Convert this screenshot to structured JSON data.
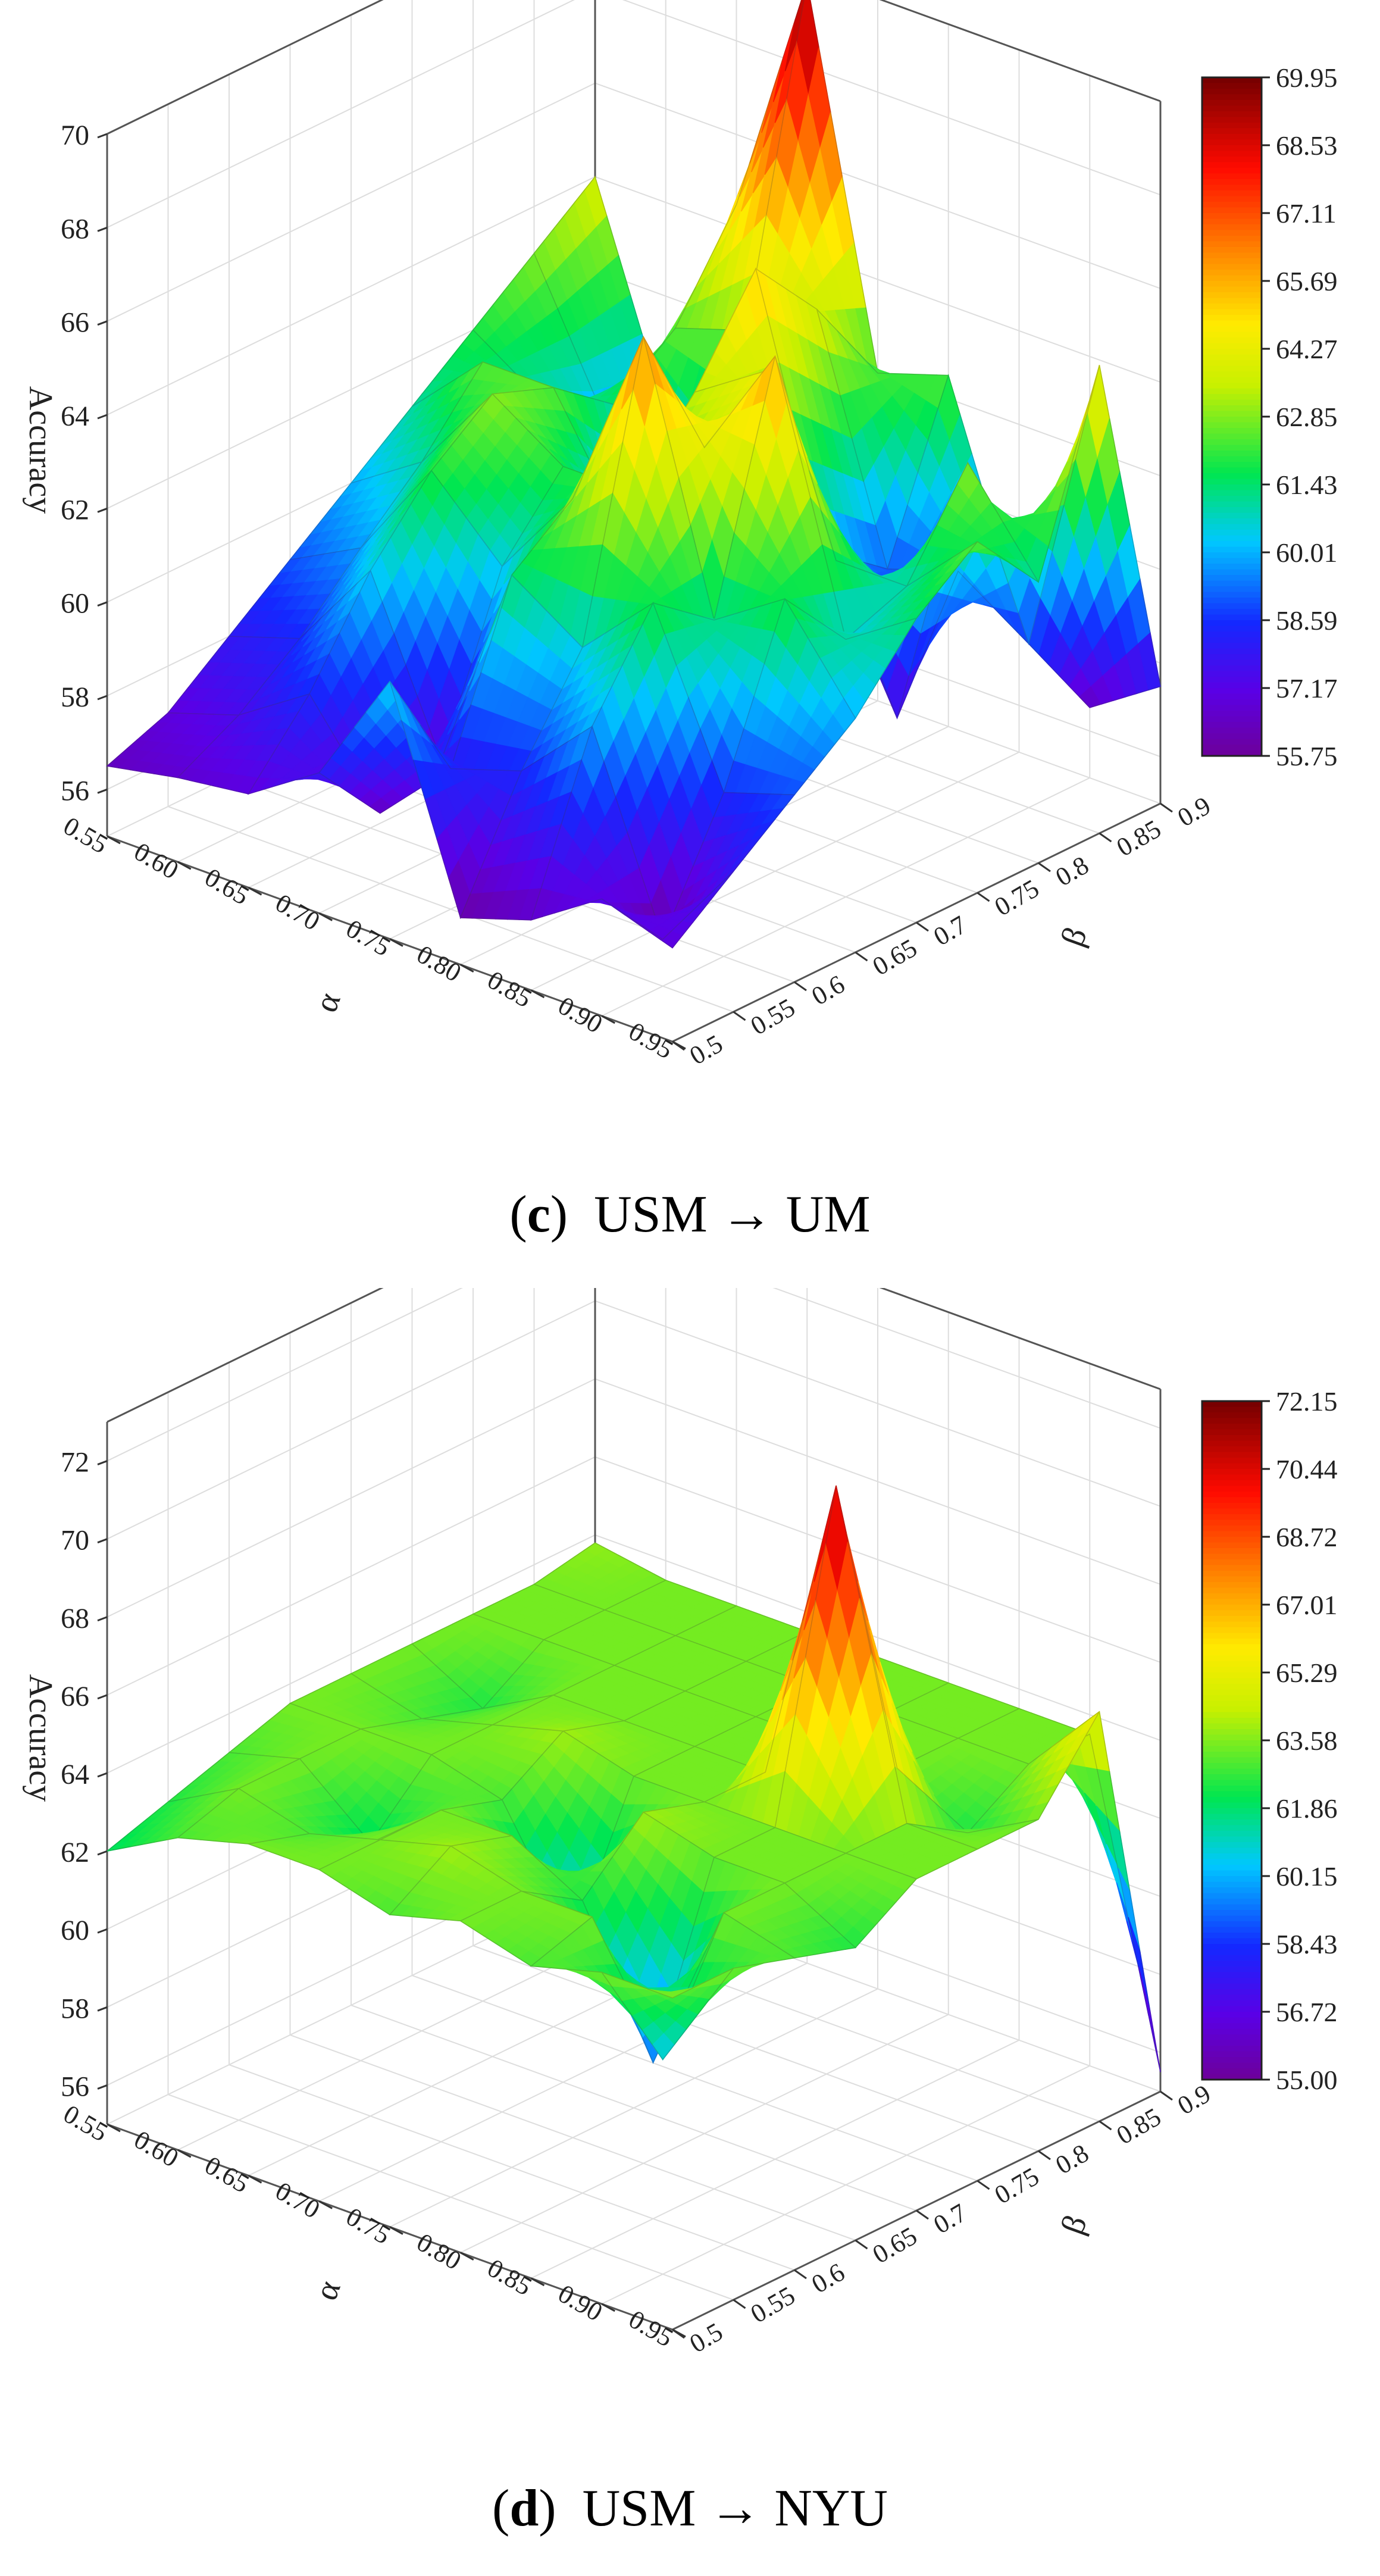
{
  "figure": {
    "panels": [
      {
        "id": "c",
        "caption": {
          "label": "c",
          "text": "USM → UM"
        },
        "colorbar_ticks": [
          "69.95",
          "68.53",
          "67.11",
          "65.69",
          "64.27",
          "62.85",
          "61.43",
          "60.01",
          "58.59",
          "57.17",
          "55.75"
        ]
      },
      {
        "id": "d",
        "caption": {
          "label": "d",
          "text": "USM → NYU"
        },
        "colorbar_ticks": [
          "72.15",
          "70.44",
          "68.72",
          "67.01",
          "65.29",
          "63.58",
          "61.86",
          "60.15",
          "58.43",
          "56.72",
          "55.00"
        ]
      }
    ]
  },
  "chart_data": [
    {
      "type": "surface3d",
      "title": "",
      "xlabel": "α",
      "ylabel": "β",
      "zlabel": "Accuracy",
      "x_ticks": [
        "0.55",
        "0.60",
        "0.65",
        "0.70",
        "0.75",
        "0.80",
        "0.85",
        "0.90",
        "0.95"
      ],
      "y_ticks": [
        "0.5",
        "0.55",
        "0.6",
        "0.65",
        "0.7",
        "0.75",
        "0.8",
        "0.85",
        "0.9"
      ],
      "z_ticks": [
        "56",
        "58",
        "60",
        "62",
        "64",
        "66",
        "68",
        "70"
      ],
      "zlim": [
        55,
        70
      ],
      "colorscale_range": [
        55.75,
        69.95
      ],
      "x": [
        0.55,
        0.6,
        0.65,
        0.7,
        0.75,
        0.8,
        0.85,
        0.9,
        0.95
      ],
      "y": [
        0.5,
        0.55,
        0.6,
        0.65,
        0.7,
        0.75,
        0.8,
        0.85,
        0.9
      ],
      "z": [
        [
          56.5,
          57.0,
          58.0,
          59.0,
          60.0,
          61.0,
          62.0,
          63.0,
          64.0
        ],
        [
          56.8,
          57.5,
          58.5,
          59.8,
          61.0,
          62.5,
          61.0,
          60.0,
          59.5
        ],
        [
          57.0,
          58.5,
          60.5,
          62.0,
          63.0,
          62.5,
          61.5,
          62.5,
          64.5
        ],
        [
          58.0,
          56.5,
          57.0,
          60.5,
          62.0,
          60.0,
          56.0,
          63.0,
          69.8
        ],
        [
          60.5,
          58.0,
          61.5,
          62.5,
          62.0,
          63.5,
          65.5,
          64.0,
          62.0
        ],
        [
          56.0,
          58.5,
          60.5,
          66.5,
          63.5,
          64.5,
          60.0,
          59.0,
          62.5
        ],
        [
          56.5,
          60.0,
          62.0,
          61.0,
          66.0,
          61.0,
          57.0,
          59.5,
          58.0
        ],
        [
          57.5,
          56.0,
          58.5,
          62.0,
          60.5,
          61.0,
          63.0,
          58.5,
          56.5
        ],
        [
          57.0,
          58.0,
          59.0,
          60.0,
          61.5,
          62.5,
          61.0,
          65.0,
          57.5
        ]
      ]
    },
    {
      "type": "surface3d",
      "title": "",
      "xlabel": "α",
      "ylabel": "β",
      "zlabel": "Accuracy",
      "x_ticks": [
        "0.55",
        "0.60",
        "0.65",
        "0.70",
        "0.75",
        "0.80",
        "0.85",
        "0.90",
        "0.95"
      ],
      "y_ticks": [
        "0.5",
        "0.55",
        "0.6",
        "0.65",
        "0.7",
        "0.75",
        "0.8",
        "0.85",
        "0.9"
      ],
      "z_ticks": [
        "56",
        "58",
        "60",
        "62",
        "64",
        "66",
        "68",
        "70",
        "72"
      ],
      "zlim": [
        55,
        73
      ],
      "colorscale_range": [
        55.0,
        72.15
      ],
      "x": [
        0.55,
        0.6,
        0.65,
        0.7,
        0.75,
        0.8,
        0.85,
        0.9,
        0.95
      ],
      "y": [
        0.5,
        0.55,
        0.6,
        0.65,
        0.7,
        0.75,
        0.8,
        0.85,
        0.9
      ],
      "z": [
        [
          62.0,
          62.5,
          63.0,
          63.5,
          63.5,
          63.5,
          63.5,
          63.5,
          63.8
        ],
        [
          63.0,
          63.5,
          63.5,
          63.5,
          63.0,
          62.5,
          63.5,
          63.5,
          63.5
        ],
        [
          63.5,
          63.0,
          62.0,
          63.5,
          63.5,
          63.5,
          63.5,
          63.5,
          63.5
        ],
        [
          63.5,
          63.5,
          63.5,
          63.0,
          64.0,
          63.5,
          63.5,
          63.5,
          63.5
        ],
        [
          63.0,
          64.0,
          63.5,
          60.0,
          63.5,
          63.5,
          63.5,
          63.5,
          63.5
        ],
        [
          63.5,
          63.5,
          62.5,
          64.0,
          63.5,
          63.5,
          63.5,
          63.5,
          63.5
        ],
        [
          63.0,
          63.5,
          59.0,
          63.5,
          63.5,
          71.5,
          63.5,
          63.5,
          63.5
        ],
        [
          63.5,
          60.5,
          63.5,
          63.5,
          63.5,
          63.5,
          62.5,
          63.5,
          63.5
        ],
        [
          63.5,
          63.5,
          63.0,
          62.5,
          63.5,
          63.5,
          63.5,
          65.5,
          55.5
        ]
      ]
    }
  ]
}
